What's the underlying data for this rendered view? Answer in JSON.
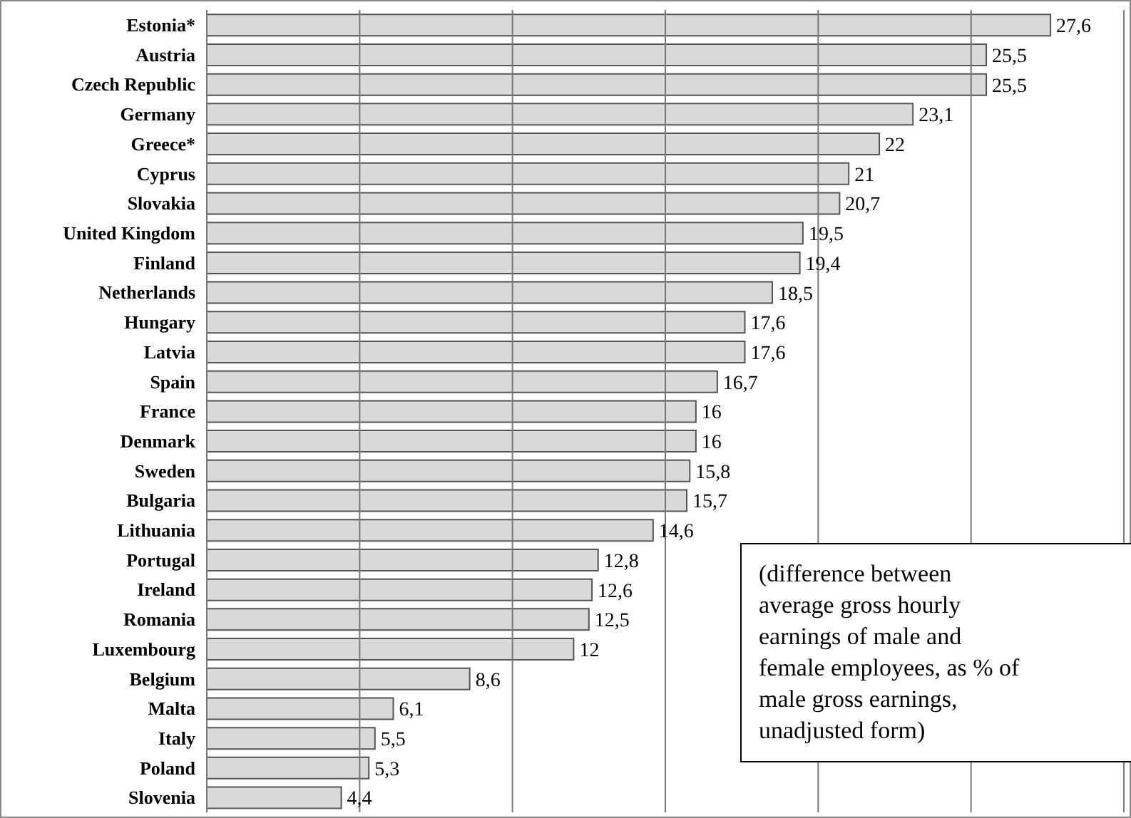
{
  "chart_data": {
    "type": "bar",
    "orientation": "horizontal",
    "categories": [
      "Estonia*",
      "Austria",
      "Czech Republic",
      "Germany",
      "Greece*",
      "Cyprus",
      "Slovakia",
      "United Kingdom",
      "Finland",
      "Netherlands",
      "Hungary",
      "Latvia",
      "Spain",
      "France",
      "Denmark",
      "Sweden",
      "Bulgaria",
      "Lithuania",
      "Portugal",
      "Ireland",
      "Romania",
      "Luxembourg",
      "Belgium",
      "Malta",
      "Italy",
      "Poland",
      "Slovenia"
    ],
    "values": [
      27.6,
      25.5,
      25.5,
      23.1,
      22,
      21,
      20.7,
      19.5,
      19.4,
      18.5,
      17.6,
      17.6,
      16.7,
      16,
      16,
      15.8,
      15.7,
      14.6,
      12.8,
      12.6,
      12.5,
      12,
      8.6,
      6.1,
      5.5,
      5.3,
      4.4
    ],
    "value_labels": [
      "27,6",
      "25,5",
      "25,5",
      "23,1",
      "22",
      "21",
      "20,7",
      "19,5",
      "19,4",
      "18,5",
      "17,6",
      "17,6",
      "16,7",
      "16",
      "16",
      "15,8",
      "15,7",
      "14,6",
      "12,8",
      "12,6",
      "12,5",
      "12",
      "8,6",
      "6,1",
      "5,5",
      "5,3",
      "4,4"
    ],
    "color": "#d9d9d9",
    "xlim": [
      0,
      30
    ],
    "xticks": [
      {
        "value": 0,
        "label": null
      },
      {
        "value": 5,
        "label": null
      },
      {
        "value": 10,
        "label": null
      },
      {
        "value": 15,
        "label": null
      },
      {
        "value": 20,
        "label": null
      },
      {
        "value": 25,
        "label": null
      },
      {
        "value": 30,
        "label": null
      }
    ],
    "tick_labels": "y",
    "grid": "x",
    "annotations": [
      "(difference between\naverage gross hourly\nearnings of male and\nfemale employees, as % of\nmale gross earnings,\nunadjusted form)"
    ]
  }
}
